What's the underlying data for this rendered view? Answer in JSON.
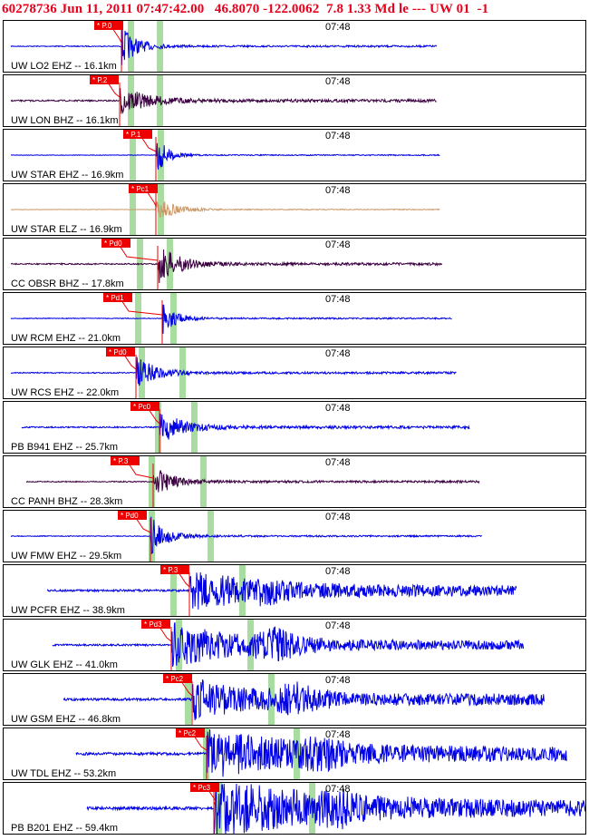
{
  "header": {
    "title": "60278736 Jun 11, 2011 07:47:42.00   46.8070 -122.0062  7.8 1.33 Md le --- UW 01  -1"
  },
  "colors": {
    "trace_blue": "#0000e6",
    "trace_dark": "#3a0040",
    "trace_tan": "#cc9a6a",
    "pick_red": "#ee0000",
    "green_band": "#a8dca0",
    "header_red": "#e8001c"
  },
  "panels": [
    {
      "label": "UW LO2 EHZ -- 16.1km",
      "time": "07:48",
      "pick": "P.0",
      "color": "blue"
    },
    {
      "label": "UW LON BHZ -- 16.1km",
      "time": "07:48",
      "pick": "P.2",
      "color": "dark"
    },
    {
      "label": "UW STAR EHZ -- 16.9km",
      "time": "07:48",
      "pick": "P.1",
      "color": "blue"
    },
    {
      "label": "UW STAR ELZ -- 16.9km",
      "time": "07:48",
      "pick": "Pc1",
      "color": "tan"
    },
    {
      "label": "CC OBSR BHZ -- 17.8km",
      "time": "07:48",
      "pick": "Pd0",
      "color": "dark"
    },
    {
      "label": "UW RCM EHZ -- 21.0km",
      "time": "07:48",
      "pick": "Pd1",
      "color": "blue"
    },
    {
      "label": "UW RCS EHZ -- 22.0km",
      "time": "07:48",
      "pick": "Pd0",
      "color": "blue"
    },
    {
      "label": "PB B941 EHZ -- 25.7km",
      "time": "07:48",
      "pick": "Pc0",
      "color": "blue"
    },
    {
      "label": "CC PANH BHZ -- 28.3km",
      "time": "07:48",
      "pick": "P.3",
      "color": "dark"
    },
    {
      "label": "UW FMW EHZ -- 29.5km",
      "time": "07:48",
      "pick": "Pd0",
      "color": "blue"
    },
    {
      "label": "UW PCFR EHZ -- 38.9km",
      "time": "07:48",
      "pick": "P.3",
      "color": "blue"
    },
    {
      "label": "UW GLK EHZ -- 41.0km",
      "time": "07:48",
      "pick": "Pd3",
      "color": "blue"
    },
    {
      "label": "UW GSM EHZ -- 46.8km",
      "time": "07:48",
      "pick": "Pc2",
      "color": "blue"
    },
    {
      "label": "UW TDL EHZ -- 53.2km",
      "time": "07:48",
      "pick": "Pc2",
      "color": "blue"
    },
    {
      "label": "PB B201 EHZ -- 59.4km",
      "time": "07:48",
      "pick": "Pc3",
      "color": "blue"
    }
  ]
}
